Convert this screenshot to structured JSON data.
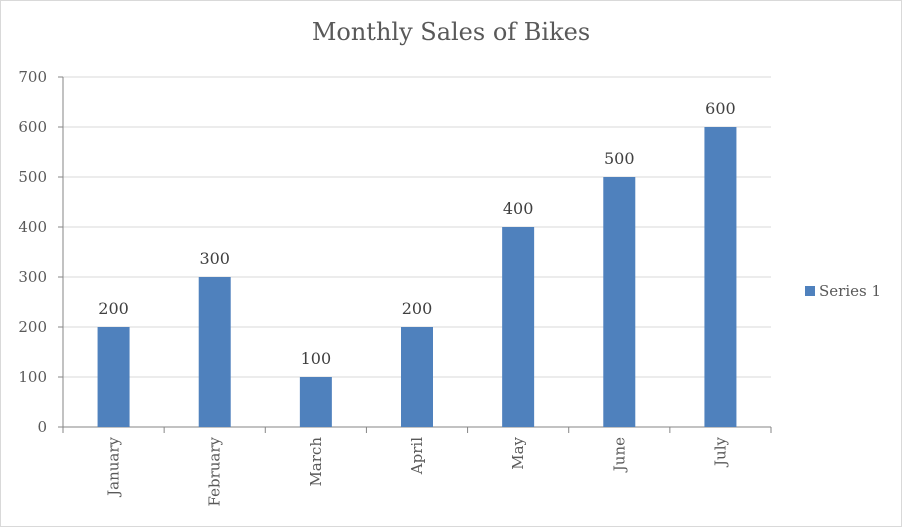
{
  "chart_data": {
    "type": "bar",
    "title": "Monthly Sales of Bikes",
    "categories": [
      "January",
      "February",
      "March",
      "April",
      "May",
      "June",
      "July"
    ],
    "series": [
      {
        "name": "Series 1",
        "values": [
          200,
          300,
          100,
          200,
          400,
          500,
          600
        ],
        "color": "#4f81bd"
      }
    ],
    "xlabel": "",
    "ylabel": "",
    "ylim": [
      0,
      700
    ],
    "yticks": [
      0,
      100,
      200,
      300,
      400,
      500,
      600,
      700
    ],
    "grid": true,
    "legend": "right",
    "data_labels": true
  }
}
